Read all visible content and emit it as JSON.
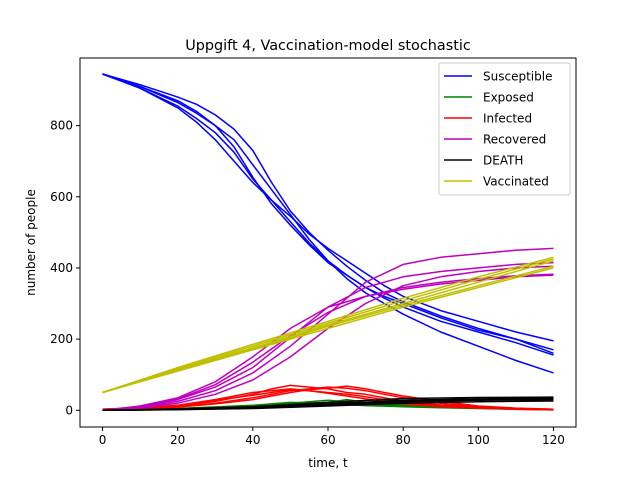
{
  "chart_data": {
    "type": "line",
    "title": "Uppgift 4, Vaccination-model stochastic",
    "xlabel": "time, t",
    "ylabel": "number of people",
    "xlim": [
      -6,
      126
    ],
    "ylim": [
      -47,
      990
    ],
    "xticks": [
      0,
      20,
      40,
      60,
      80,
      100,
      120
    ],
    "yticks": [
      0,
      200,
      400,
      600,
      800
    ],
    "legend_position": "top-right",
    "grid": false,
    "series": [
      {
        "name": "Susceptible",
        "color": "#0000ff",
        "runs": [
          {
            "x": [
              0,
              10,
              20,
              25,
              30,
              35,
              40,
              45,
              50,
              55,
              60,
              65,
              70,
              75,
              80,
              90,
              100,
              110,
              120
            ],
            "y": [
              945,
              910,
              870,
              840,
              800,
              740,
              655,
              580,
              520,
              465,
              415,
              380,
              345,
              315,
              290,
              250,
              220,
              190,
              155
            ]
          },
          {
            "x": [
              0,
              10,
              20,
              25,
              30,
              35,
              40,
              45,
              50,
              55,
              60,
              65,
              70,
              75,
              80,
              90,
              100,
              110,
              120
            ],
            "y": [
              945,
              905,
              855,
              820,
              780,
              725,
              650,
              590,
              530,
              470,
              420,
              380,
              345,
              320,
              300,
              260,
              225,
              200,
              160
            ]
          },
          {
            "x": [
              0,
              10,
              20,
              25,
              30,
              35,
              40,
              45,
              50,
              55,
              60,
              65,
              70,
              75,
              80,
              90,
              100,
              110,
              120
            ],
            "y": [
              945,
              905,
              850,
              810,
              760,
              700,
              640,
              590,
              545,
              495,
              455,
              420,
              385,
              350,
              320,
              280,
              250,
              220,
              195
            ]
          },
          {
            "x": [
              0,
              10,
              20,
              25,
              30,
              35,
              40,
              45,
              50,
              55,
              60,
              65,
              70,
              75,
              80,
              90,
              100,
              110,
              120
            ],
            "y": [
              945,
              915,
              880,
              860,
              830,
              790,
              730,
              640,
              560,
              500,
              450,
              405,
              365,
              330,
              305,
              265,
              230,
              200,
              170
            ]
          },
          {
            "x": [
              0,
              10,
              20,
              25,
              30,
              35,
              40,
              45,
              50,
              55,
              60,
              65,
              70,
              75,
              80,
              90,
              100,
              110,
              120
            ],
            "y": [
              945,
              910,
              865,
              835,
              800,
              760,
              690,
              620,
              550,
              480,
              420,
              370,
              330,
              300,
              270,
              220,
              180,
              140,
              105
            ]
          }
        ]
      },
      {
        "name": "Exposed",
        "color": "#008000",
        "runs": [
          {
            "x": [
              0,
              20,
              40,
              50,
              60,
              65,
              70,
              80,
              90,
              100,
              110,
              120
            ],
            "y": [
              0,
              5,
              12,
              20,
              28,
              24,
              18,
              12,
              8,
              6,
              4,
              3
            ]
          },
          {
            "x": [
              0,
              20,
              40,
              50,
              60,
              65,
              70,
              80,
              90,
              100,
              110,
              120
            ],
            "y": [
              0,
              4,
              10,
              18,
              22,
              30,
              22,
              14,
              9,
              6,
              4,
              2
            ]
          },
          {
            "x": [
              0,
              20,
              40,
              50,
              60,
              65,
              70,
              80,
              90,
              100,
              110,
              120
            ],
            "y": [
              0,
              5,
              14,
              22,
              20,
              16,
              13,
              10,
              7,
              5,
              3,
              2
            ]
          },
          {
            "x": [
              0,
              20,
              40,
              50,
              60,
              65,
              70,
              80,
              90,
              100,
              110,
              120
            ],
            "y": [
              0,
              3,
              8,
              14,
              18,
              22,
              20,
              15,
              10,
              7,
              5,
              3
            ]
          },
          {
            "x": [
              0,
              20,
              40,
              50,
              60,
              65,
              70,
              80,
              90,
              100,
              110,
              120
            ],
            "y": [
              0,
              4,
              11,
              16,
              22,
              18,
              14,
              11,
              8,
              6,
              4,
              2
            ]
          }
        ]
      },
      {
        "name": "Infected",
        "color": "#ff0000",
        "runs": [
          {
            "x": [
              0,
              10,
              20,
              30,
              40,
              45,
              50,
              55,
              60,
              65,
              70,
              75,
              80,
              90,
              100,
              110,
              120
            ],
            "y": [
              3,
              6,
              12,
              25,
              45,
              60,
              70,
              65,
              60,
              50,
              45,
              35,
              25,
              15,
              8,
              4,
              2
            ]
          },
          {
            "x": [
              0,
              10,
              20,
              30,
              40,
              45,
              50,
              55,
              60,
              65,
              70,
              75,
              80,
              90,
              100,
              110,
              120
            ],
            "y": [
              3,
              5,
              10,
              20,
              35,
              45,
              55,
              60,
              65,
              62,
              55,
              45,
              35,
              20,
              10,
              5,
              2
            ]
          },
          {
            "x": [
              0,
              10,
              20,
              30,
              40,
              45,
              50,
              55,
              60,
              65,
              70,
              75,
              80,
              90,
              100,
              110,
              120
            ],
            "y": [
              3,
              6,
              14,
              30,
              50,
              55,
              60,
              55,
              48,
              40,
              32,
              25,
              18,
              10,
              6,
              3,
              1
            ]
          },
          {
            "x": [
              0,
              10,
              20,
              30,
              40,
              45,
              50,
              55,
              60,
              65,
              70,
              75,
              80,
              90,
              100,
              110,
              120
            ],
            "y": [
              3,
              5,
              9,
              18,
              30,
              40,
              50,
              58,
              62,
              68,
              60,
              50,
              40,
              25,
              12,
              6,
              3
            ]
          },
          {
            "x": [
              0,
              10,
              20,
              30,
              40,
              45,
              50,
              55,
              60,
              65,
              70,
              75,
              80,
              90,
              100,
              110,
              120
            ],
            "y": [
              3,
              6,
              13,
              28,
              42,
              50,
              58,
              55,
              50,
              45,
              38,
              30,
              22,
              12,
              7,
              3,
              1
            ]
          }
        ]
      },
      {
        "name": "Recovered",
        "color": "#bf00bf",
        "runs": [
          {
            "x": [
              0,
              10,
              20,
              30,
              40,
              50,
              60,
              70,
              80,
              90,
              100,
              110,
              120
            ],
            "y": [
              0,
              10,
              30,
              65,
              120,
              205,
              290,
              345,
              375,
              390,
              400,
              410,
              415
            ]
          },
          {
            "x": [
              0,
              10,
              20,
              30,
              40,
              50,
              60,
              70,
              80,
              90,
              100,
              110,
              120
            ],
            "y": [
              0,
              8,
              25,
              55,
              105,
              180,
              270,
              360,
              410,
              430,
              440,
              450,
              455
            ]
          },
          {
            "x": [
              0,
              10,
              20,
              30,
              40,
              50,
              60,
              70,
              80,
              90,
              100,
              110,
              120
            ],
            "y": [
              0,
              12,
              35,
              80,
              150,
              230,
              290,
              320,
              340,
              355,
              365,
              375,
              380
            ]
          },
          {
            "x": [
              0,
              10,
              20,
              30,
              40,
              50,
              60,
              70,
              80,
              90,
              100,
              110,
              120
            ],
            "y": [
              0,
              6,
              20,
              45,
              85,
              150,
              230,
              300,
              350,
              375,
              390,
              400,
              405
            ]
          },
          {
            "x": [
              0,
              10,
              20,
              30,
              40,
              50,
              60,
              70,
              80,
              90,
              100,
              110,
              120
            ],
            "y": [
              0,
              11,
              32,
              72,
              135,
              210,
              275,
              320,
              345,
              360,
              370,
              378,
              382
            ]
          }
        ]
      },
      {
        "name": "DEATH",
        "color": "#000000",
        "runs": [
          {
            "x": [
              0,
              20,
              40,
              60,
              80,
              100,
              120
            ],
            "y": [
              0,
              3,
              8,
              18,
              28,
              32,
              34
            ]
          },
          {
            "x": [
              0,
              20,
              40,
              60,
              80,
              100,
              120
            ],
            "y": [
              0,
              2,
              6,
              15,
              25,
              30,
              32
            ]
          },
          {
            "x": [
              0,
              20,
              40,
              60,
              80,
              100,
              120
            ],
            "y": [
              0,
              4,
              10,
              22,
              33,
              36,
              37
            ]
          },
          {
            "x": [
              0,
              20,
              40,
              60,
              80,
              100,
              120
            ],
            "y": [
              0,
              2,
              5,
              12,
              20,
              24,
              26
            ]
          },
          {
            "x": [
              0,
              20,
              40,
              60,
              80,
              100,
              120
            ],
            "y": [
              0,
              3,
              7,
              16,
              24,
              28,
              30
            ]
          }
        ]
      },
      {
        "name": "Vaccinated",
        "color": "#bfbf00",
        "runs": [
          {
            "x": [
              0,
              20,
              40,
              60,
              80,
              100,
              120
            ],
            "y": [
              50,
              115,
              175,
              240,
              300,
              360,
              420
            ]
          },
          {
            "x": [
              0,
              20,
              40,
              60,
              80,
              100,
              120
            ],
            "y": [
              50,
              120,
              185,
              250,
              315,
              375,
              430
            ]
          },
          {
            "x": [
              0,
              20,
              40,
              60,
              80,
              100,
              120
            ],
            "y": [
              50,
              110,
              170,
              230,
              290,
              345,
              400
            ]
          },
          {
            "x": [
              0,
              20,
              40,
              60,
              80,
              100,
              120
            ],
            "y": [
              50,
              112,
              172,
              236,
              295,
              350,
              405
            ]
          },
          {
            "x": [
              0,
              20,
              40,
              60,
              80,
              100,
              120
            ],
            "y": [
              50,
              118,
              180,
              245,
              308,
              368,
              425
            ]
          }
        ]
      }
    ]
  }
}
